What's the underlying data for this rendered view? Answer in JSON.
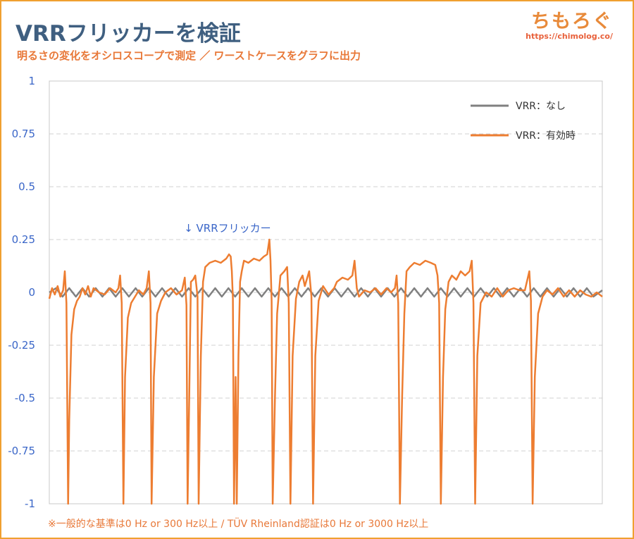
{
  "header": {
    "title": "VRRフリッカーを検証",
    "subtitle": "明るさの変化をオシロスコープで測定 ／ ワーストケースをグラフに出力"
  },
  "logo": {
    "mark": "ちもろぐ",
    "url": "https://chimolog.co/"
  },
  "footnote": "※一般的な基準は0 Hz or 300 Hz以上 / TÜV Rheinland認証は0 Hz or 3000 Hz以上",
  "chart_data": {
    "type": "line",
    "title": "VRRフリッカーを検証",
    "xlabel": "",
    "ylabel": "",
    "ylim": [
      -1,
      1
    ],
    "xlim": [
      0,
      1000
    ],
    "y_ticks": [
      "1",
      "0.75",
      "0.5",
      "0.25",
      "0",
      "-0.25",
      "-0.5",
      "-0.75",
      "-1"
    ],
    "grid": "horizontal dashed",
    "legend_position": "top-right",
    "annotation": {
      "text": "↓ VRRフリッカー",
      "x": 320,
      "y": 0.28
    },
    "colors": {
      "none": "#808080",
      "vrr": "#ed7d31"
    },
    "series": [
      {
        "name": "VRR：なし",
        "points": [
          [
            0,
            0
          ],
          [
            12,
            0.02
          ],
          [
            24,
            -0.02
          ],
          [
            36,
            0.02
          ],
          [
            48,
            -0.02
          ],
          [
            60,
            0.02
          ],
          [
            72,
            -0.02
          ],
          [
            84,
            0.02
          ],
          [
            96,
            -0.02
          ],
          [
            108,
            0.02
          ],
          [
            120,
            -0.02
          ],
          [
            132,
            0.02
          ],
          [
            144,
            -0.02
          ],
          [
            156,
            0.02
          ],
          [
            168,
            -0.02
          ],
          [
            180,
            0.02
          ],
          [
            192,
            -0.02
          ],
          [
            204,
            0.02
          ],
          [
            216,
            -0.02
          ],
          [
            228,
            0.02
          ],
          [
            240,
            -0.02
          ],
          [
            252,
            0.02
          ],
          [
            264,
            -0.02
          ],
          [
            276,
            0.02
          ],
          [
            288,
            -0.02
          ],
          [
            300,
            0.02
          ],
          [
            312,
            -0.02
          ],
          [
            324,
            0.02
          ],
          [
            336,
            -0.02
          ],
          [
            348,
            0.02
          ],
          [
            360,
            -0.02
          ],
          [
            372,
            0.02
          ],
          [
            384,
            -0.02
          ],
          [
            396,
            0.02
          ],
          [
            408,
            -0.02
          ],
          [
            420,
            0.02
          ],
          [
            432,
            -0.02
          ],
          [
            444,
            0.02
          ],
          [
            456,
            -0.02
          ],
          [
            468,
            0.02
          ],
          [
            480,
            -0.02
          ],
          [
            492,
            0.02
          ],
          [
            504,
            -0.02
          ],
          [
            516,
            0.02
          ],
          [
            528,
            -0.02
          ],
          [
            540,
            0.02
          ],
          [
            552,
            -0.02
          ],
          [
            564,
            0.02
          ],
          [
            576,
            -0.02
          ],
          [
            588,
            0.02
          ],
          [
            600,
            -0.02
          ],
          [
            612,
            0.02
          ],
          [
            624,
            -0.02
          ],
          [
            636,
            0.02
          ],
          [
            648,
            -0.02
          ],
          [
            660,
            0.02
          ],
          [
            672,
            -0.02
          ],
          [
            684,
            0.02
          ],
          [
            696,
            -0.02
          ],
          [
            708,
            0.02
          ],
          [
            720,
            -0.02
          ],
          [
            732,
            0.02
          ],
          [
            744,
            -0.02
          ],
          [
            756,
            0.02
          ],
          [
            768,
            -0.02
          ],
          [
            780,
            0.02
          ],
          [
            792,
            -0.02
          ],
          [
            804,
            0.02
          ],
          [
            816,
            -0.02
          ],
          [
            828,
            0.02
          ],
          [
            840,
            -0.02
          ],
          [
            852,
            0.02
          ],
          [
            864,
            -0.02
          ],
          [
            876,
            0.02
          ],
          [
            888,
            -0.02
          ],
          [
            900,
            0.02
          ],
          [
            912,
            -0.02
          ],
          [
            924,
            0.02
          ],
          [
            936,
            -0.02
          ],
          [
            948,
            0.02
          ],
          [
            960,
            -0.02
          ],
          [
            972,
            0.02
          ],
          [
            984,
            -0.02
          ],
          [
            1000,
            0.01
          ]
        ]
      },
      {
        "name": "VRR：有効時",
        "points": [
          [
            0,
            -0.03
          ],
          [
            5,
            0.02
          ],
          [
            10,
            -0.01
          ],
          [
            15,
            0.03
          ],
          [
            20,
            -0.02
          ],
          [
            25,
            0.01
          ],
          [
            28,
            0.1
          ],
          [
            31,
            -0.05
          ],
          [
            34,
            -1
          ],
          [
            36,
            -0.6
          ],
          [
            40,
            -0.2
          ],
          [
            45,
            -0.08
          ],
          [
            50,
            -0.04
          ],
          [
            55,
            -0.02
          ],
          [
            60,
            0.02
          ],
          [
            65,
            -0.01
          ],
          [
            70,
            0.03
          ],
          [
            75,
            -0.02
          ],
          [
            80,
            0.02
          ],
          [
            90,
            0
          ],
          [
            100,
            -0.01
          ],
          [
            110,
            0.02
          ],
          [
            120,
            0
          ],
          [
            125,
            0.02
          ],
          [
            128,
            0.08
          ],
          [
            131,
            -0.05
          ],
          [
            134,
            -1
          ],
          [
            137,
            -0.4
          ],
          [
            142,
            -0.12
          ],
          [
            148,
            -0.05
          ],
          [
            155,
            -0.02
          ],
          [
            162,
            0.01
          ],
          [
            170,
            -0.01
          ],
          [
            176,
            0.02
          ],
          [
            180,
            0.1
          ],
          [
            183,
            -0.05
          ],
          [
            185,
            -1
          ],
          [
            189,
            -0.4
          ],
          [
            195,
            -0.1
          ],
          [
            202,
            -0.04
          ],
          [
            210,
            0
          ],
          [
            220,
            0.02
          ],
          [
            230,
            -0.01
          ],
          [
            240,
            0.01
          ],
          [
            245,
            0.07
          ],
          [
            248,
            -0.06
          ],
          [
            250,
            -1
          ],
          [
            253,
            -0.5
          ],
          [
            256,
            0.05
          ],
          [
            260,
            0.06
          ],
          [
            264,
            0.08
          ],
          [
            268,
            -0.02
          ],
          [
            270,
            -1
          ],
          [
            274,
            -0.3
          ],
          [
            278,
            0.05
          ],
          [
            282,
            0.12
          ],
          [
            290,
            0.14
          ],
          [
            300,
            0.15
          ],
          [
            310,
            0.14
          ],
          [
            320,
            0.16
          ],
          [
            325,
            0.18
          ],
          [
            328,
            0.17
          ],
          [
            330,
            0.1
          ],
          [
            332,
            -0.03
          ],
          [
            334,
            -1
          ],
          [
            337,
            -0.4
          ],
          [
            339,
            -1
          ],
          [
            342,
            -0.3
          ],
          [
            345,
            0.05
          ],
          [
            348,
            0.1
          ],
          [
            352,
            0.15
          ],
          [
            360,
            0.14
          ],
          [
            370,
            0.16
          ],
          [
            380,
            0.15
          ],
          [
            388,
            0.17
          ],
          [
            394,
            0.18
          ],
          [
            398,
            0.25
          ],
          [
            400,
            0.15
          ],
          [
            402,
            -0.04
          ],
          [
            404,
            -1
          ],
          [
            408,
            -0.5
          ],
          [
            412,
            -0.1
          ],
          [
            418,
            0.08
          ],
          [
            425,
            0.1
          ],
          [
            430,
            0.12
          ],
          [
            433,
            -0.05
          ],
          [
            436,
            -1
          ],
          [
            440,
            -0.3
          ],
          [
            446,
            -0.03
          ],
          [
            452,
            0.05
          ],
          [
            458,
            0.08
          ],
          [
            462,
            0.03
          ],
          [
            470,
            0.1
          ],
          [
            474,
            -0.02
          ],
          [
            477,
            -1
          ],
          [
            481,
            -0.3
          ],
          [
            487,
            -0.04
          ],
          [
            495,
            0.03
          ],
          [
            505,
            -0.01
          ],
          [
            515,
            0.02
          ],
          [
            520,
            0.05
          ],
          [
            530,
            0.07
          ],
          [
            540,
            0.06
          ],
          [
            548,
            0.08
          ],
          [
            552,
            0.15
          ],
          [
            556,
            0.02
          ],
          [
            560,
            -0.02
          ],
          [
            570,
            0.01
          ],
          [
            580,
            0
          ],
          [
            590,
            0.02
          ],
          [
            600,
            -0.01
          ],
          [
            610,
            0.02
          ],
          [
            618,
            0
          ],
          [
            625,
            0.02
          ],
          [
            628,
            0.08
          ],
          [
            631,
            -0.05
          ],
          [
            634,
            -1
          ],
          [
            638,
            -0.5
          ],
          [
            642,
            -0.1
          ],
          [
            646,
            0.1
          ],
          [
            652,
            0.12
          ],
          [
            660,
            0.14
          ],
          [
            670,
            0.13
          ],
          [
            680,
            0.15
          ],
          [
            690,
            0.14
          ],
          [
            698,
            0.13
          ],
          [
            702,
            0.08
          ],
          [
            705,
            -0.05
          ],
          [
            708,
            -1
          ],
          [
            712,
            -0.4
          ],
          [
            716,
            -0.08
          ],
          [
            722,
            0.05
          ],
          [
            728,
            0.08
          ],
          [
            736,
            0.06
          ],
          [
            744,
            0.1
          ],
          [
            752,
            0.08
          ],
          [
            760,
            0.1
          ],
          [
            764,
            0.15
          ],
          [
            767,
            -0.05
          ],
          [
            770,
            -1
          ],
          [
            774,
            -0.3
          ],
          [
            780,
            -0.05
          ],
          [
            790,
            0
          ],
          [
            800,
            -0.02
          ],
          [
            810,
            0.02
          ],
          [
            820,
            -0.02
          ],
          [
            830,
            0.01
          ],
          [
            840,
            0.02
          ],
          [
            850,
            0.01
          ],
          [
            860,
            0.01
          ],
          [
            868,
            0.1
          ],
          [
            871,
            -0.04
          ],
          [
            874,
            -1
          ],
          [
            878,
            -0.4
          ],
          [
            884,
            -0.1
          ],
          [
            892,
            -0.02
          ],
          [
            900,
            0.01
          ],
          [
            910,
            -0.01
          ],
          [
            920,
            0.02
          ],
          [
            930,
            -0.02
          ],
          [
            940,
            0.01
          ],
          [
            950,
            -0.02
          ],
          [
            960,
            0.01
          ],
          [
            970,
            -0.01
          ],
          [
            980,
            -0.02
          ],
          [
            990,
            0
          ],
          [
            1000,
            -0.02
          ]
        ]
      }
    ]
  }
}
